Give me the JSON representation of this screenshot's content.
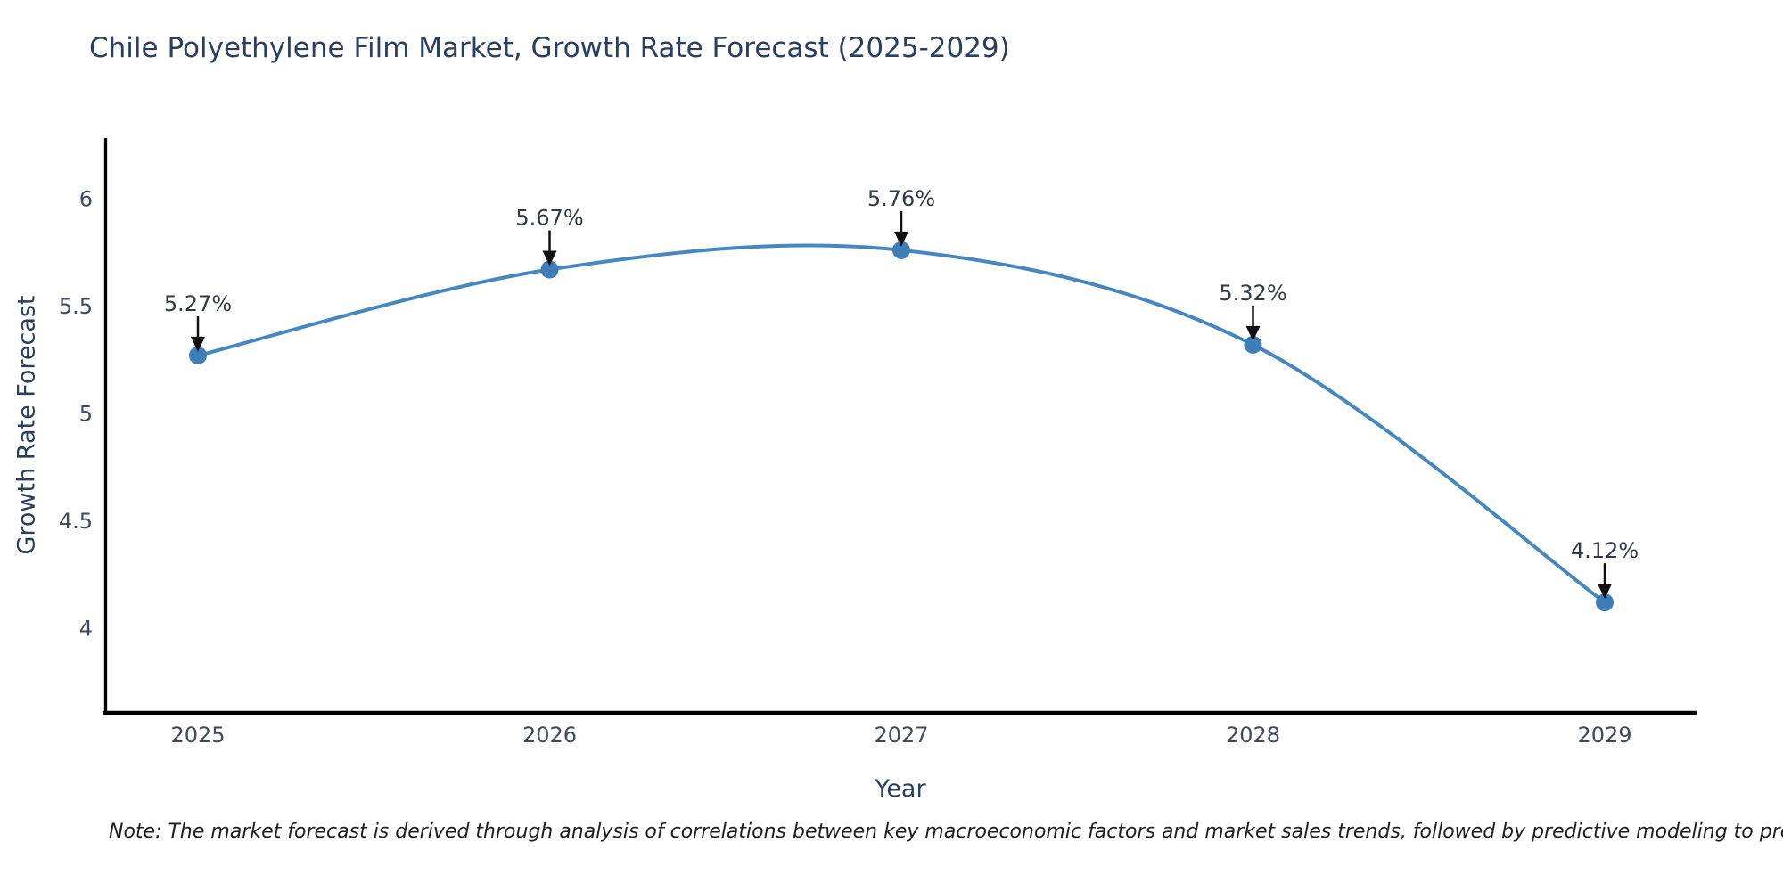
{
  "chart_data": {
    "type": "line",
    "title": "Chile Polyethylene Film Market, Growth Rate Forecast (2025-2029)",
    "xlabel": "Year",
    "ylabel": "Growth Rate Forecast",
    "categories": [
      2025,
      2026,
      2027,
      2028,
      2029
    ],
    "values": [
      5.27,
      5.67,
      5.76,
      5.32,
      4.12
    ],
    "point_labels": [
      "5.27%",
      "5.67%",
      "5.76%",
      "5.32%",
      "4.12%"
    ],
    "yticks": [
      6,
      5.5,
      5,
      4.5,
      4
    ],
    "xticks": [
      "2025",
      "2026",
      "2027",
      "2028",
      "2029"
    ],
    "ylim": [
      3.6,
      6.28
    ],
    "curve": "spline",
    "grid": false,
    "legend": "none",
    "line_color": "#4787c0",
    "marker_color": "#3d7eb8",
    "axis_color": "#000000",
    "arrow_color": "#111111",
    "note": "Note: The market forecast is derived through analysis of correlations between key macroeconomic factors and market sales trends, followed by predictive modeling to project future sales"
  }
}
